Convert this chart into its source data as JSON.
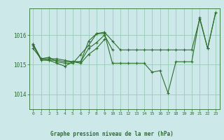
{
  "background_color": "#cce8e8",
  "plot_bg_color": "#cce8e8",
  "grid_color": "#99ccbb",
  "line_color": "#2d6e2d",
  "ylim": [
    1013.5,
    1016.9
  ],
  "xlim": [
    -0.5,
    23.5
  ],
  "yticks": [
    1014,
    1015,
    1016
  ],
  "xticks": [
    0,
    1,
    2,
    3,
    4,
    5,
    6,
    7,
    8,
    9,
    10,
    11,
    12,
    13,
    14,
    15,
    16,
    17,
    18,
    19,
    20,
    21,
    22,
    23
  ],
  "xlabel": "Graphe pression niveau de la mer (hPa)",
  "series": [
    {
      "x": [
        0,
        1,
        2,
        3,
        4,
        5,
        6,
        7,
        8,
        9,
        10,
        11,
        12,
        13,
        14,
        15,
        16,
        17,
        18,
        19,
        20,
        21,
        22,
        23
      ],
      "y": [
        1015.7,
        1015.2,
        1015.2,
        1015.2,
        1015.15,
        1015.1,
        1015.1,
        1015.8,
        1016.05,
        1016.05,
        1015.05,
        1015.05,
        1015.05,
        1015.05,
        1015.05,
        1014.75,
        1014.8,
        1014.05,
        1015.1,
        1015.1,
        1015.1,
        1016.6,
        1015.55,
        1016.75
      ]
    },
    {
      "x": [
        0,
        1,
        2,
        3,
        4,
        5,
        6,
        7,
        8,
        9,
        10,
        11,
        12,
        13,
        14,
        15,
        16,
        17,
        18,
        19,
        20,
        21,
        22,
        23
      ],
      "y": [
        1015.55,
        1015.2,
        1015.25,
        1015.1,
        1015.05,
        1015.05,
        1015.35,
        1015.65,
        1016.05,
        1016.1,
        1015.8,
        1015.5,
        1015.5,
        1015.5,
        1015.5,
        1015.5,
        1015.5,
        1015.5,
        1015.5,
        1015.5,
        1015.5,
        1016.55,
        1015.55,
        1016.75
      ]
    },
    {
      "x": [
        0,
        1,
        2,
        3,
        4,
        5,
        6,
        7,
        8,
        9,
        10
      ],
      "y": [
        1015.65,
        1015.2,
        1015.15,
        1015.15,
        1015.1,
        1015.1,
        1015.1,
        1015.55,
        1015.75,
        1016.0,
        1015.5
      ]
    },
    {
      "x": [
        0,
        1,
        2,
        3,
        4,
        5,
        6,
        7,
        8,
        9
      ],
      "y": [
        1015.7,
        1015.15,
        1015.15,
        1015.05,
        1014.95,
        1015.1,
        1015.05,
        1015.35,
        1015.55,
        1015.85
      ]
    }
  ]
}
